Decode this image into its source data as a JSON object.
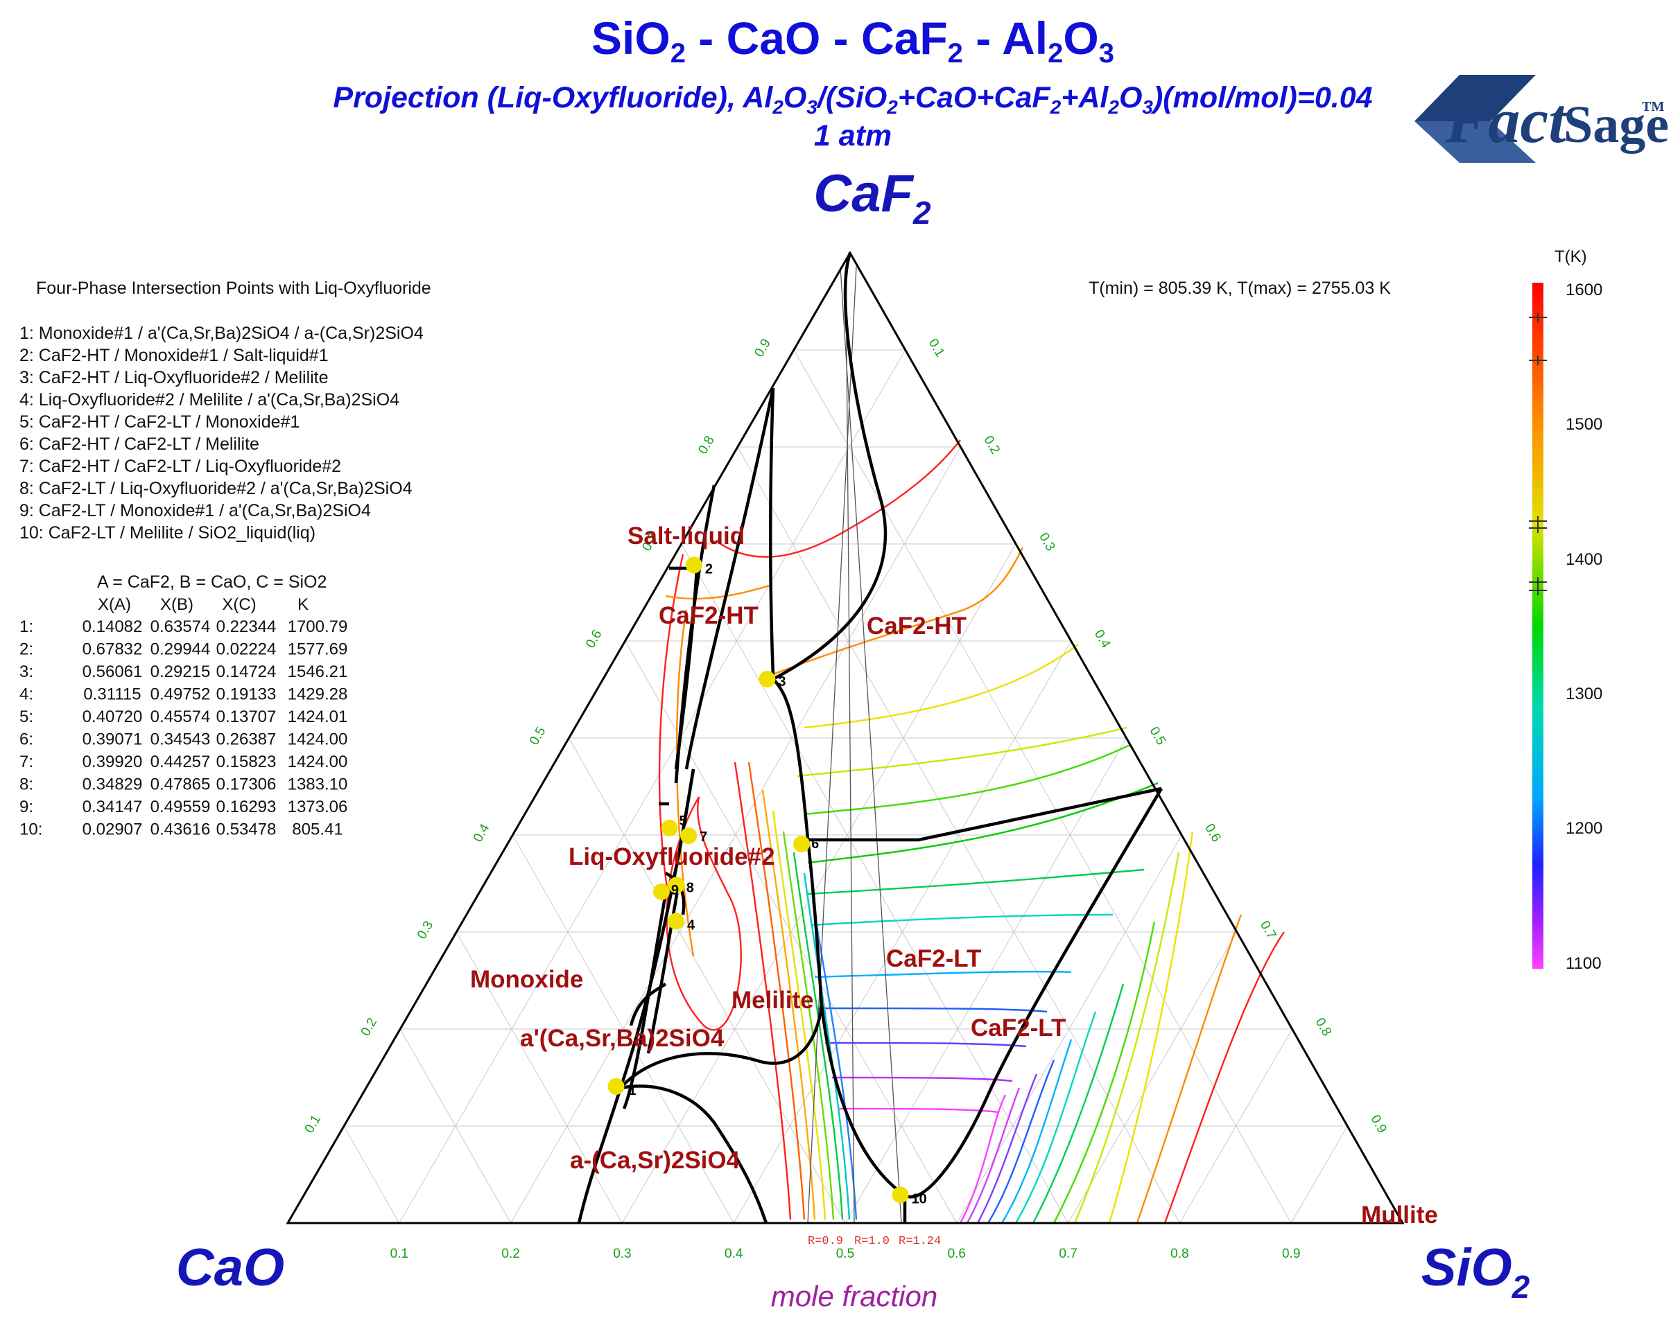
{
  "title": {
    "system": [
      "SiO",
      "2",
      " - CaO - CaF",
      "2",
      " - Al",
      "2",
      "O",
      "3"
    ],
    "subtitle_parts": [
      "Projection (Liq-Oxyfluoride), Al",
      "2",
      "O",
      "3",
      "/(SiO",
      "2",
      "+CaO+CaF",
      "2",
      "+Al",
      "2",
      "O",
      "3",
      ")(mol/mol)=0.04"
    ],
    "pressure": "1 atm"
  },
  "logo": {
    "main": "Fact",
    "second": "Sage",
    "tm": "TM"
  },
  "corners": {
    "top": {
      "base": "CaF",
      "sub": "2"
    },
    "left": {
      "base": "CaO",
      "sub": ""
    },
    "right": {
      "base": "SiO",
      "sub": "2"
    }
  },
  "axis_caption": "mole fraction",
  "temperature_range": "T(min) = 805.39 K, T(max) = 2755.03 K",
  "legend": {
    "heading": "Four-Phase Intersection Points with Liq-Oxyfluoride",
    "items": [
      "1:   Monoxide#1 / a'(Ca,Sr,Ba)2SiO4 / a-(Ca,Sr)2SiO4",
      "2:   CaF2-HT / Monoxide#1 / Salt-liquid#1",
      "3:   CaF2-HT / Liq-Oxyfluoride#2 / Melilite",
      "4:   Liq-Oxyfluoride#2 / Melilite / a'(Ca,Sr,Ba)2SiO4",
      "5:   CaF2-HT / CaF2-LT / Monoxide#1",
      "6:   CaF2-HT / CaF2-LT / Melilite",
      "7:   CaF2-HT / CaF2-LT / Liq-Oxyfluoride#2",
      "8:   CaF2-LT / Liq-Oxyfluoride#2 / a'(Ca,Sr,Ba)2SiO4",
      "9:   CaF2-LT / Monoxide#1 / a'(Ca,Sr,Ba)2SiO4",
      "10: CaF2-LT / Melilite / SiO2_liquid(liq)"
    ],
    "component_key": "A = CaF2,  B = CaO,  C = SiO2",
    "table_headers": [
      "X(A)",
      "X(B)",
      "X(C)",
      "K"
    ],
    "table_rows": [
      [
        "1:",
        "0.14082",
        "0.63574",
        "0.22344",
        "1700.79"
      ],
      [
        "2:",
        "0.67832",
        "0.29944",
        "0.02224",
        "1577.69"
      ],
      [
        "3:",
        "0.56061",
        "0.29215",
        "0.14724",
        "1546.21"
      ],
      [
        "4:",
        "0.31115",
        "0.49752",
        "0.19133",
        "1429.28"
      ],
      [
        "5:",
        "0.40720",
        "0.45574",
        "0.13707",
        "1424.01"
      ],
      [
        "6:",
        "0.39071",
        "0.34543",
        "0.26387",
        "1424.00"
      ],
      [
        "7:",
        "0.39920",
        "0.44257",
        "0.15823",
        "1424.00"
      ],
      [
        "8:",
        "0.34829",
        "0.47865",
        "0.17306",
        "1383.10"
      ],
      [
        "9:",
        "0.34147",
        "0.49559",
        "0.16293",
        "1373.06"
      ],
      [
        "10:",
        "0.02907",
        "0.43616",
        "0.53478",
        "805.41"
      ]
    ]
  },
  "colorbar": {
    "unit_label": "T(K)",
    "ticks": [
      "1600",
      "1500",
      "1400",
      "1300",
      "1200",
      "1100"
    ]
  },
  "phase_labels": [
    "Salt-liquid",
    "CaF2-HT",
    "CaF2-HT",
    "Liq-Oxyfluoride#2",
    "Monoxide",
    "Melilite",
    "a'(Ca,Sr,Ba)2SiO4",
    "CaF2-LT",
    "CaF2-LT",
    "a-(Ca,Sr)2SiO4",
    "Mullite"
  ],
  "tick_labels": [
    "0.1",
    "0.2",
    "0.3",
    "0.4",
    "0.5",
    "0.6",
    "0.7",
    "0.8",
    "0.9"
  ],
  "point_numbers": [
    "1",
    "2",
    "3",
    "4",
    "5",
    "6",
    "7",
    "8",
    "9",
    "10"
  ],
  "ratio_labels": [
    "R=0.9",
    "R=1.0",
    "R=1.24"
  ],
  "colors": {
    "title_blue": "#1010d8",
    "phase_red": "#a01010",
    "tick_green": "#18a018",
    "point_yellow": "#f0e000",
    "boundary_black": "#000000"
  }
}
